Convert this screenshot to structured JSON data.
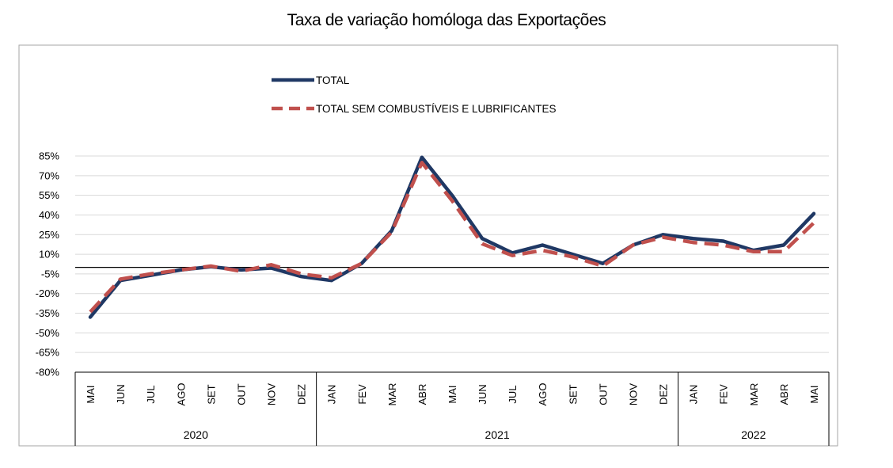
{
  "chart_data": {
    "type": "line",
    "title": "Taxa de variação homóloga das Exportações",
    "xlabel": "",
    "ylabel": "",
    "ylim": [
      -80,
      85
    ],
    "yticks": [
      85,
      70,
      55,
      40,
      25,
      10,
      -5,
      -20,
      -35,
      -50,
      -65,
      -80
    ],
    "ytick_labels": [
      "85%",
      "70%",
      "55%",
      "40%",
      "25%",
      "10%",
      "-5%",
      "-20%",
      "-35%",
      "-50%",
      "-65%",
      "-80%"
    ],
    "categories": [
      "MAI",
      "JUN",
      "JUL",
      "AGO",
      "SET",
      "OUT",
      "NOV",
      "DEZ",
      "JAN",
      "FEV",
      "MAR",
      "ABR",
      "MAI",
      "JUN",
      "JUL",
      "AGO",
      "SET",
      "OUT",
      "NOV",
      "DEZ",
      "JAN",
      "FEV",
      "MAR",
      "ABR",
      "MAI"
    ],
    "year_groups": [
      {
        "label": "2020",
        "count": 8
      },
      {
        "label": "2021",
        "count": 12
      },
      {
        "label": "2022",
        "count": 5
      }
    ],
    "series": [
      {
        "name": "TOTAL",
        "color": "#1f3864",
        "style": "solid",
        "values": [
          -38,
          -10,
          -6,
          -2,
          0.5,
          -2,
          -0.5,
          -7,
          -10,
          3,
          28,
          84,
          55,
          22,
          11,
          17,
          10,
          3,
          17,
          25,
          22,
          20,
          13,
          17,
          41
        ]
      },
      {
        "name": "TOTAL SEM COMBUSTÍVEIS E LUBRIFICANTES",
        "color": "#c0504d",
        "style": "dashed",
        "values": [
          -34,
          -9,
          -5,
          -2,
          1,
          -3,
          2,
          -5,
          -8,
          3,
          27,
          80,
          51,
          18,
          9,
          13,
          8,
          1,
          17,
          23,
          19,
          17,
          12,
          12,
          34
        ]
      }
    ],
    "zero_line": true,
    "grid": true,
    "legend_position": "top-center"
  }
}
